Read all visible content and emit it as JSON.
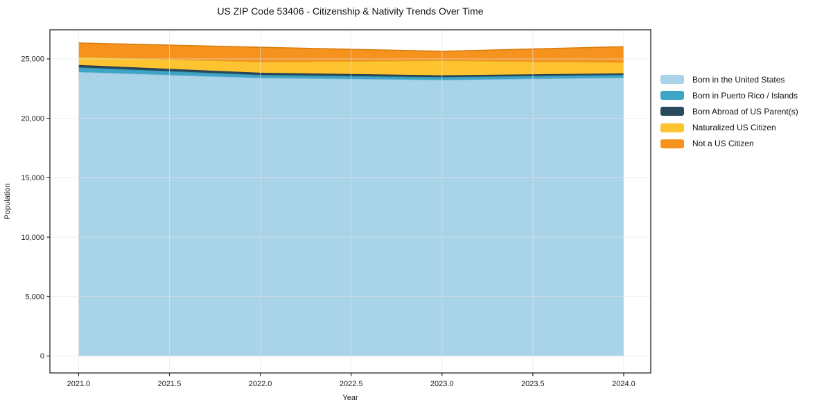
{
  "title": "US ZIP Code 53406 - Citizenship & Nativity Trends Over Time",
  "chart_data": {
    "type": "area",
    "stacked": true,
    "title": "US ZIP Code 53406 - Citizenship & Nativity Trends Over Time",
    "xlabel": "Year",
    "ylabel": "Population",
    "x": [
      2021,
      2022,
      2023,
      2024
    ],
    "series": [
      {
        "name": "Born in the United States",
        "color": "#a8d3e8",
        "edge_color": "#8fc3dd",
        "values": [
          23900,
          23400,
          23230,
          23420
        ]
      },
      {
        "name": "Born in Puerto Rico / Islands",
        "color": "#3fa5c6",
        "edge_color": "#358fae",
        "values": [
          390,
          250,
          240,
          240
        ]
      },
      {
        "name": "Born Abroad of US Parent(s)",
        "color": "#28495c",
        "edge_color": "#203b4a",
        "values": [
          200,
          190,
          150,
          130
        ]
      },
      {
        "name": "Naturalized US Citizen",
        "color": "#fdc330",
        "edge_color": "#e0a81e",
        "values": [
          690,
          920,
          1250,
          920
        ]
      },
      {
        "name": "Not a US Citizen",
        "color": "#f6931e",
        "edge_color": "#d97d10",
        "values": [
          1160,
          1220,
          770,
          1320
        ]
      }
    ],
    "xlim": [
      2020.842,
      2024.149
    ],
    "ylim": [
      -1430,
      27450
    ],
    "xticks": [
      2021.0,
      2021.5,
      2022.0,
      2022.5,
      2023.0,
      2023.5,
      2024.0
    ],
    "xtick_labels": [
      "2021.0",
      "2021.5",
      "2022.0",
      "2022.5",
      "2023.0",
      "2023.5",
      "2024.0"
    ],
    "yticks": [
      0,
      5000,
      10000,
      15000,
      20000,
      25000
    ],
    "ytick_labels": [
      "0",
      "5,000",
      "10,000",
      "15,000",
      "20,000",
      "25,000"
    ],
    "grid": true,
    "grid_color": "#e4e4e4",
    "spine_color": "#262626",
    "background_color": "#ffffff",
    "legend_position": "right"
  }
}
